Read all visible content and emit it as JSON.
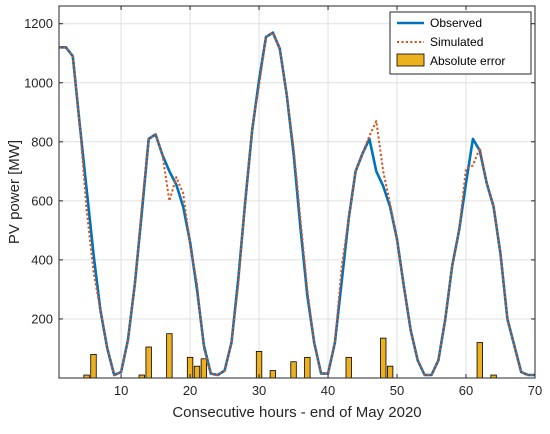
{
  "chart_data": {
    "type": "line",
    "xlabel": "Consecutive hours - end of May 2020",
    "ylabel": "PV power [MW]",
    "xlim": [
      1,
      70
    ],
    "ylim": [
      0,
      1260
    ],
    "xticks": [
      10,
      20,
      30,
      40,
      50,
      60,
      70
    ],
    "yticks": [
      200,
      400,
      600,
      800,
      1000,
      1200
    ],
    "grid": true,
    "legend_position": "top-right",
    "colors": {
      "observed": "#0072BD",
      "simulated": "#D95319",
      "error": "#EDB120"
    },
    "series": [
      {
        "name": "Observed",
        "style": "solid",
        "x": [
          1,
          2,
          3,
          4,
          5,
          6,
          7,
          8,
          9,
          10,
          11,
          12,
          13,
          14,
          15,
          16,
          17,
          18,
          19,
          20,
          21,
          22,
          23,
          24,
          25,
          26,
          27,
          28,
          29,
          30,
          31,
          32,
          33,
          34,
          35,
          36,
          37,
          38,
          39,
          40,
          41,
          42,
          43,
          44,
          45,
          46,
          47,
          48,
          49,
          50,
          51,
          52,
          53,
          54,
          55,
          56,
          57,
          58,
          59,
          60,
          61,
          62,
          63,
          64,
          65,
          66,
          67,
          68,
          69,
          70
        ],
        "y": [
          1120,
          1120,
          1090,
          900,
          700,
          500,
          280,
          110,
          10,
          20,
          140,
          330,
          560,
          810,
          825,
          760,
          695,
          650,
          580,
          460,
          320,
          115,
          20,
          15,
          25,
          120,
          340,
          600,
          840,
          1010,
          1155,
          1170,
          1115,
          960,
          780,
          510,
          300,
          120,
          15,
          15,
          120,
          330,
          540,
          700,
          760,
          810,
          670,
          660,
          590,
          480,
          320,
          100,
          15,
          10,
          60,
          200,
          380,
          500,
          660,
          810,
          775,
          660,
          580,
          420,
          190,
          60,
          20,
          40,
          200,
          480
        ],
        "_comment": "x runs 1..70; tail trimmed from the 70-point vectors above for values after hour 66"
      }
    ],
    "observed": {
      "name": "Observed",
      "x": [
        1,
        2,
        3,
        4,
        5,
        6,
        7,
        8,
        9,
        10,
        11,
        12,
        13,
        14,
        15,
        16,
        17,
        18,
        19,
        20,
        21,
        22,
        23,
        24,
        25,
        26,
        27,
        28,
        29,
        30,
        31,
        32,
        33,
        34,
        35,
        36,
        37,
        38,
        39,
        40,
        41,
        42,
        43,
        44,
        45,
        46,
        47,
        48,
        49,
        50,
        51,
        52,
        53,
        54,
        55,
        56,
        57,
        58,
        59,
        60,
        61,
        62,
        63,
        64,
        65,
        66,
        67,
        68,
        69,
        70
      ],
      "y": [
        1120,
        1120,
        1090,
        860,
        640,
        420,
        230,
        100,
        10,
        20,
        130,
        320,
        560,
        810,
        825,
        755,
        700,
        655,
        580,
        460,
        300,
        110,
        15,
        10,
        25,
        120,
        340,
        600,
        840,
        1010,
        1155,
        1170,
        1115,
        960,
        760,
        510,
        280,
        120,
        15,
        15,
        120,
        330,
        540,
        700,
        760,
        810,
        700,
        650,
        580,
        470,
        310,
        160,
        60,
        10,
        10,
        60,
        200,
        380,
        500,
        660,
        810,
        770,
        660,
        580,
        420,
        200,
        110,
        20,
        10,
        10
      ]
    },
    "simulated": {
      "name": "Simulated",
      "x": [
        1,
        2,
        3,
        4,
        5,
        6,
        7,
        8,
        9,
        10,
        11,
        12,
        13,
        14,
        15,
        16,
        17,
        18,
        19,
        20,
        21,
        22,
        23,
        24,
        25,
        26,
        27,
        28,
        29,
        30,
        31,
        32,
        33,
        34,
        35,
        36,
        37,
        38,
        39,
        40,
        41,
        42,
        43,
        44,
        45,
        46,
        47,
        48,
        49,
        50,
        51,
        52,
        53,
        54,
        55,
        56,
        57,
        58,
        59,
        60,
        61,
        62,
        63,
        64,
        65,
        66,
        67,
        68,
        69,
        70
      ],
      "y": [
        1120,
        1120,
        1090,
        860,
        570,
        360,
        230,
        100,
        10,
        20,
        130,
        320,
        580,
        810,
        825,
        755,
        600,
        680,
        625,
        450,
        320,
        100,
        15,
        10,
        25,
        120,
        320,
        610,
        850,
        990,
        1155,
        1170,
        1115,
        960,
        780,
        540,
        300,
        120,
        15,
        15,
        120,
        380,
        540,
        700,
        760,
        820,
        870,
        700,
        590,
        470,
        310,
        160,
        60,
        10,
        10,
        60,
        200,
        380,
        500,
        710,
        720,
        780,
        660,
        580,
        420,
        200,
        110,
        20,
        10,
        10
      ]
    },
    "error": {
      "name": "Absolute error",
      "x": [
        5,
        6,
        13,
        14,
        17,
        20,
        21,
        22,
        30,
        32,
        35,
        37,
        43,
        48,
        49,
        62,
        64
      ],
      "y": [
        10,
        80,
        10,
        105,
        150,
        70,
        40,
        65,
        90,
        25,
        55,
        70,
        70,
        135,
        40,
        120,
        10
      ]
    },
    "legend": [
      "Observed",
      "Simulated",
      "Absolute error"
    ]
  }
}
